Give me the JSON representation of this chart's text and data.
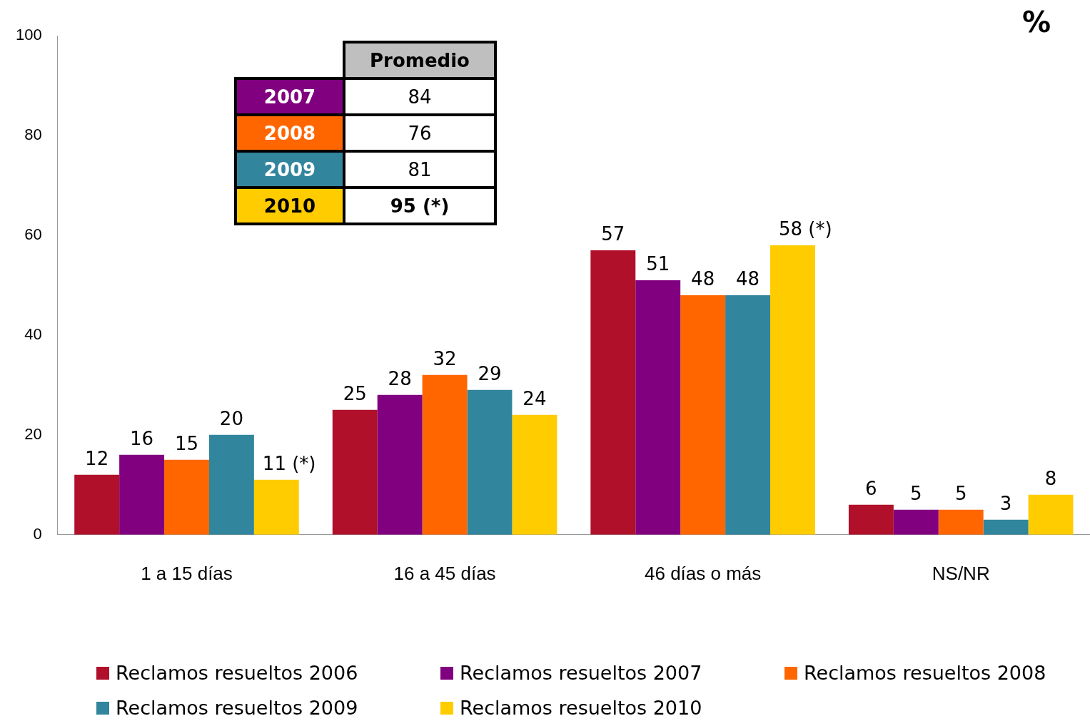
{
  "chart_data": {
    "type": "bar",
    "ylabel": "%",
    "categories": [
      "1 a 15 días",
      "16 a 45 días",
      "46 días o más",
      "NS/NR"
    ],
    "series": [
      {
        "name": "Reclamos resueltos 2006",
        "color": "#b0102a",
        "values": [
          12,
          25,
          57,
          6
        ]
      },
      {
        "name": "Reclamos resueltos 2007",
        "color": "#800080",
        "values": [
          16,
          28,
          51,
          5
        ]
      },
      {
        "name": "Reclamos resueltos 2008",
        "color": "#ff6600",
        "values": [
          15,
          32,
          48,
          5
        ]
      },
      {
        "name": "Reclamos resueltos 2009",
        "color": "#31859c",
        "values": [
          20,
          29,
          48,
          3
        ]
      },
      {
        "name": "Reclamos resueltos 2010",
        "color": "#ffcc00",
        "values": [
          11,
          24,
          58,
          8
        ],
        "value_labels": [
          "11 (*)",
          "24",
          "58 (*)",
          "8"
        ]
      }
    ],
    "ylim": [
      0,
      100
    ],
    "yticks": [
      0,
      20,
      40,
      60,
      80,
      100
    ],
    "grid": false,
    "legend": "bottom",
    "data_labels": true,
    "annotations": [
      "Promedio",
      "2007",
      "84",
      "2008",
      "76",
      "2009",
      "81",
      "2010",
      "95 (*)"
    ]
  }
}
